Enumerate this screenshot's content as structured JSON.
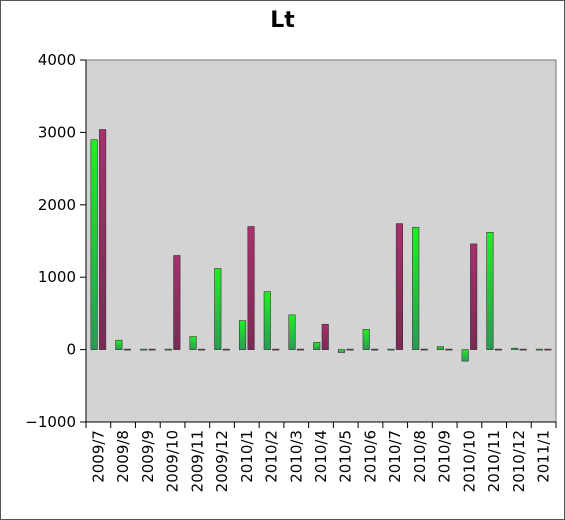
{
  "chart_data": {
    "type": "bar",
    "title": "Lt",
    "xlabel": "",
    "ylabel": "",
    "ylim": [
      -1000,
      4000
    ],
    "yticks": [
      -1000,
      0,
      1000,
      2000,
      3000,
      4000
    ],
    "grid": false,
    "categories": [
      "2009/7",
      "2009/8",
      "2009/9",
      "2009/10",
      "2009/11",
      "2009/12",
      "2010/1",
      "2010/2",
      "2010/3",
      "2010/4",
      "2010/5",
      "2010/6",
      "2010/7",
      "2010/8",
      "2010/9",
      "2010/10",
      "2010/11",
      "2010/12",
      "2011/1"
    ],
    "series": [
      {
        "color": "#22dd22",
        "values": [
          2900,
          130,
          0,
          0,
          180,
          1120,
          400,
          800,
          480,
          100,
          -40,
          280,
          0,
          1690,
          40,
          -160,
          1620,
          20,
          0
        ]
      },
      {
        "color": "#993366",
        "values": [
          3040,
          0,
          0,
          1300,
          0,
          0,
          1700,
          0,
          0,
          350,
          0,
          0,
          1740,
          0,
          0,
          1460,
          0,
          0,
          0
        ]
      }
    ]
  }
}
